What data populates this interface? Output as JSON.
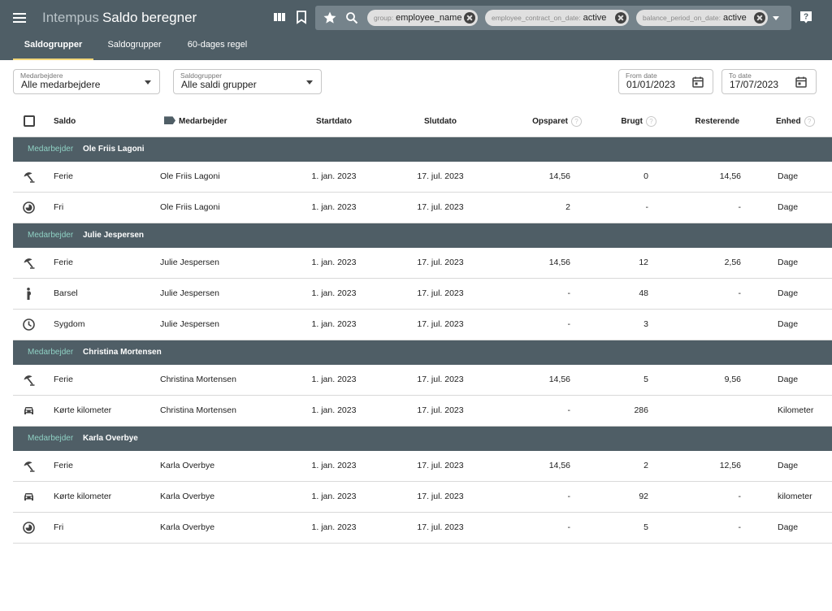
{
  "app": {
    "product": "Intempus",
    "title": "Saldo beregner"
  },
  "toolbar": {
    "icons": [
      "menu-icon",
      "columns-icon",
      "bookmark-icon",
      "star-icon",
      "search-icon",
      "dropdown-icon",
      "help-icon"
    ],
    "chips": [
      {
        "key": "group:",
        "value": "employee_name"
      },
      {
        "key": "employee_contract_on_date:",
        "value": "active"
      },
      {
        "key": "balance_period_on_date:",
        "value": "active"
      }
    ]
  },
  "tabs": [
    {
      "label": "Saldogrupper",
      "active": true
    },
    {
      "label": "Saldogrupper",
      "active": false
    },
    {
      "label": "60-dages regel",
      "active": false
    }
  ],
  "filters": {
    "employees": {
      "label": "Medarbejdere",
      "value": "Alle medarbejdere"
    },
    "groups": {
      "label": "Saldogrupper",
      "value": "Alle saldi grupper"
    },
    "from": {
      "label": "From date",
      "value": "01/01/2023"
    },
    "to": {
      "label": "To date",
      "value": "17/07/2023"
    }
  },
  "table": {
    "headers": {
      "saldo": "Saldo",
      "employee": "Medarbejder",
      "start": "Startdato",
      "end": "Slutdato",
      "saved": "Opsparet",
      "used": "Brugt",
      "remaining": "Resterende",
      "unit": "Enhed",
      "help": "?"
    },
    "group_label": "Medarbejder",
    "groups": [
      {
        "name": "Ole Friis Lagoni",
        "rows": [
          {
            "icon": "beach-umbrella-icon",
            "saldo": "Ferie",
            "employee": "Ole Friis Lagoni",
            "start": "1. jan. 2023",
            "end": "17. jul. 2023",
            "saved": "14,56",
            "used": "0",
            "remaining": "14,56",
            "unit": "Dage"
          },
          {
            "icon": "timelapse-icon",
            "saldo": "Fri",
            "employee": "Ole Friis Lagoni",
            "start": "1. jan. 2023",
            "end": "17. jul. 2023",
            "saved": "2",
            "used": "-",
            "remaining": "-",
            "unit": "Dage"
          }
        ]
      },
      {
        "name": "Julie Jespersen",
        "rows": [
          {
            "icon": "beach-umbrella-icon",
            "saldo": "Ferie",
            "employee": "Julie Jespersen",
            "start": "1. jan. 2023",
            "end": "17. jul. 2023",
            "saved": "14,56",
            "used": "12",
            "remaining": "2,56",
            "unit": "Dage"
          },
          {
            "icon": "pregnant-icon",
            "saldo": "Barsel",
            "employee": "Julie Jespersen",
            "start": "1. jan. 2023",
            "end": "17. jul. 2023",
            "saved": "-",
            "used": "48",
            "remaining": "-",
            "unit": "Dage"
          },
          {
            "icon": "clock-icon",
            "saldo": "Sygdom",
            "employee": "Julie Jespersen",
            "start": "1. jan. 2023",
            "end": "17. jul. 2023",
            "saved": "-",
            "used": "3",
            "remaining": "",
            "unit": "Dage"
          }
        ]
      },
      {
        "name": "Christina Mortensen",
        "rows": [
          {
            "icon": "beach-umbrella-icon",
            "saldo": "Ferie",
            "employee": "Christina Mortensen",
            "start": "1. jan. 2023",
            "end": "17. jul. 2023",
            "saved": "14,56",
            "used": "5",
            "remaining": "9,56",
            "unit": "Dage"
          },
          {
            "icon": "car-icon",
            "saldo": "Kørte kilometer",
            "employee": "Christina Mortensen",
            "start": "1. jan. 2023",
            "end": "17. jul. 2023",
            "saved": "-",
            "used": "286",
            "remaining": "",
            "unit": "Kilometer"
          }
        ]
      },
      {
        "name": "Karla Overbye",
        "rows": [
          {
            "icon": "beach-umbrella-icon",
            "saldo": "Ferie",
            "employee": "Karla Overbye",
            "start": "1. jan. 2023",
            "end": "17. jul. 2023",
            "saved": "14,56",
            "used": "2",
            "remaining": "12,56",
            "unit": "Dage"
          },
          {
            "icon": "car-icon",
            "saldo": "Kørte kilometer",
            "employee": "Karla Overbye",
            "start": "1. jan. 2023",
            "end": "17. jul. 2023",
            "saved": "-",
            "used": "92",
            "remaining": "-",
            "unit": "kilometer"
          },
          {
            "icon": "timelapse-icon",
            "saldo": "Fri",
            "employee": "Karla Overbye",
            "start": "1. jan. 2023",
            "end": "17. jul. 2023",
            "saved": "-",
            "used": "5",
            "remaining": "-",
            "unit": "Dage"
          }
        ]
      }
    ]
  }
}
